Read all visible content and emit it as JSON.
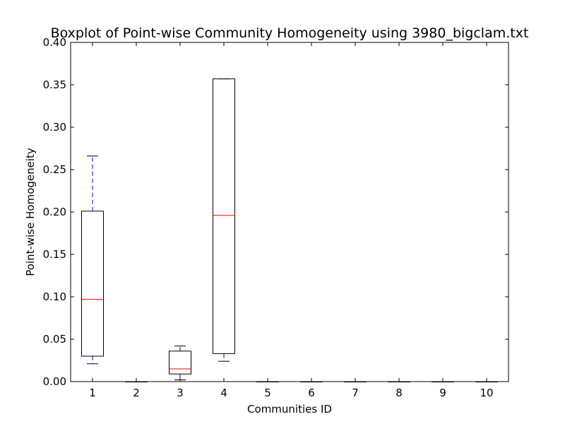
{
  "chart_data": {
    "type": "boxplot",
    "title": "Boxplot of Point-wise Community Homogeneity using 3980_bigclam.txt",
    "xlabel": "Communities ID",
    "ylabel": "Point-wise Homogeneity",
    "ylim": [
      0.0,
      0.4
    ],
    "yticks": [
      "0.00",
      "0.05",
      "0.10",
      "0.15",
      "0.20",
      "0.25",
      "0.30",
      "0.35",
      "0.40"
    ],
    "categories": [
      "1",
      "2",
      "3",
      "4",
      "5",
      "6",
      "7",
      "8",
      "9",
      "10"
    ],
    "boxes": [
      {
        "id": "1",
        "whisker_low": 0.021,
        "q1": 0.03,
        "median": 0.097,
        "q3": 0.201,
        "whisker_high": 0.266
      },
      {
        "id": "2",
        "whisker_low": 0.0,
        "q1": 0.0,
        "median": 0.0,
        "q3": 0.0,
        "whisker_high": 0.0
      },
      {
        "id": "3",
        "whisker_low": 0.002,
        "q1": 0.009,
        "median": 0.015,
        "q3": 0.036,
        "whisker_high": 0.042
      },
      {
        "id": "4",
        "whisker_low": 0.024,
        "q1": 0.033,
        "median": 0.196,
        "q3": 0.357,
        "whisker_high": 0.357
      },
      {
        "id": "5",
        "whisker_low": 0.0,
        "q1": 0.0,
        "median": 0.0,
        "q3": 0.0,
        "whisker_high": 0.0
      },
      {
        "id": "6",
        "whisker_low": 0.0,
        "q1": 0.0,
        "median": 0.0,
        "q3": 0.0,
        "whisker_high": 0.0
      },
      {
        "id": "7",
        "whisker_low": 0.0,
        "q1": 0.0,
        "median": 0.0,
        "q3": 0.0,
        "whisker_high": 0.0
      },
      {
        "id": "8",
        "whisker_low": 0.0,
        "q1": 0.0,
        "median": 0.0,
        "q3": 0.0,
        "whisker_high": 0.0
      },
      {
        "id": "9",
        "whisker_low": 0.0,
        "q1": 0.0,
        "median": 0.0,
        "q3": 0.0,
        "whisker_high": 0.0
      },
      {
        "id": "10",
        "whisker_low": 0.0,
        "q1": 0.0,
        "median": 0.0,
        "q3": 0.0,
        "whisker_high": 0.0
      }
    ],
    "grid": false,
    "colors": {
      "box": "#000000",
      "median": "#ff0000",
      "whisker": "#0000ff",
      "cap": "#000000"
    }
  }
}
